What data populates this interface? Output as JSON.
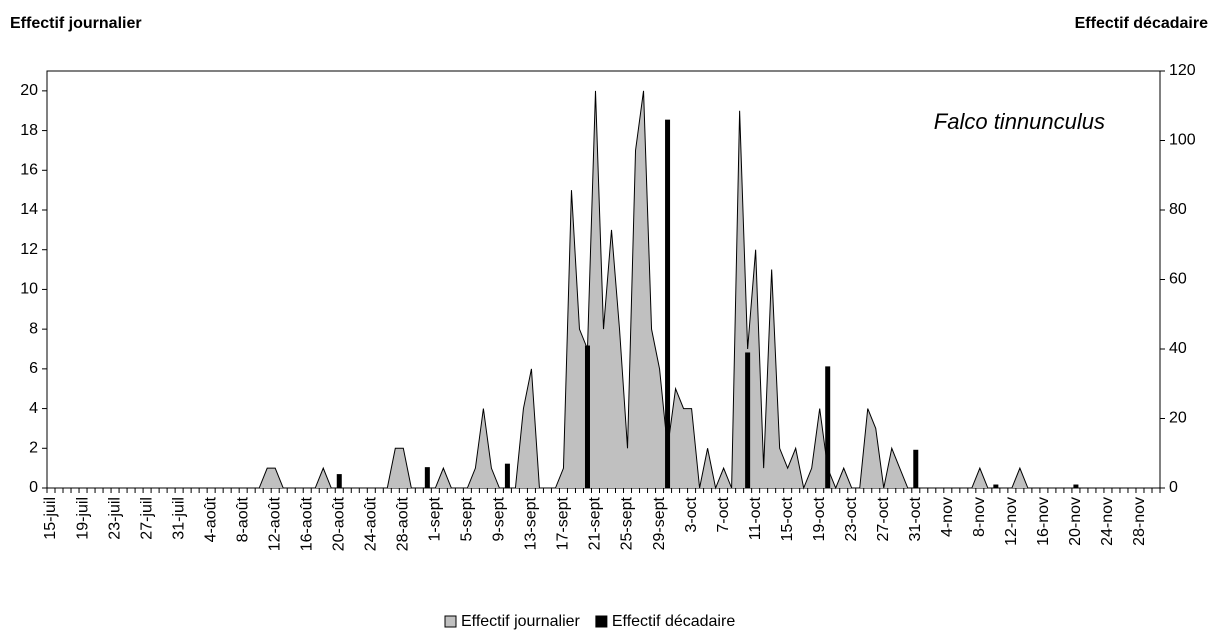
{
  "chart_data": {
    "type": "area",
    "ylabel": "Effectif journalier",
    "y2label": "Effectif décadaire",
    "annotation": "Falco tinnunculus",
    "categories": [
      "15-juil",
      null,
      null,
      null,
      "19-juil",
      null,
      null,
      null,
      "23-juil",
      null,
      null,
      null,
      "27-juil",
      null,
      null,
      null,
      "31-juil",
      null,
      null,
      null,
      "4-août",
      null,
      null,
      null,
      "8-août",
      null,
      null,
      null,
      "12-août",
      null,
      null,
      null,
      "16-août",
      null,
      null,
      null,
      "20-août",
      null,
      null,
      null,
      "24-août",
      null,
      null,
      null,
      "28-août",
      null,
      null,
      null,
      "1-sept",
      null,
      null,
      null,
      "5-sept",
      null,
      null,
      null,
      "9-sept",
      null,
      null,
      null,
      "13-sept",
      null,
      null,
      null,
      "17-sept",
      null,
      null,
      null,
      "21-sept",
      null,
      null,
      null,
      "25-sept",
      null,
      null,
      null,
      "29-sept",
      null,
      null,
      null,
      "3-oct",
      null,
      null,
      null,
      "7-oct",
      null,
      null,
      null,
      "11-oct",
      null,
      null,
      null,
      "15-oct",
      null,
      null,
      null,
      "19-oct",
      null,
      null,
      null,
      "23-oct",
      null,
      null,
      null,
      "27-oct",
      null,
      null,
      null,
      "31-oct",
      null,
      null,
      null,
      "4-nov",
      null,
      null,
      null,
      "8-nov",
      null,
      null,
      null,
      "12-nov",
      null,
      null,
      null,
      "16-nov",
      null,
      null,
      null,
      "20-nov",
      null,
      null,
      null,
      "24-nov",
      null,
      null,
      null,
      "28-nov",
      null,
      null
    ],
    "series": [
      {
        "name": "Effectif journalier",
        "type": "area",
        "color": "#c0c0c0",
        "values": [
          0,
          0,
          0,
          0,
          0,
          0,
          0,
          0,
          0,
          0,
          0,
          0,
          0,
          0,
          0,
          0,
          0,
          0,
          0,
          0,
          0,
          0,
          0,
          0,
          0,
          0,
          0,
          1,
          1,
          0,
          0,
          0,
          0,
          0,
          1,
          0,
          0,
          0,
          0,
          0,
          0,
          0,
          0,
          2,
          2,
          0,
          0,
          0,
          0,
          1,
          0,
          0,
          0,
          1,
          4,
          1,
          0,
          0,
          0,
          4,
          6,
          0,
          0,
          0,
          1,
          15,
          8,
          7,
          20,
          8,
          13,
          8,
          2,
          17,
          20,
          8,
          6,
          2,
          5,
          4,
          4,
          0,
          2,
          0,
          1,
          0,
          19,
          7,
          12,
          1,
          11,
          2,
          1,
          2,
          0,
          1,
          4,
          1,
          0,
          1,
          0,
          0,
          4,
          3,
          0,
          2,
          1,
          0,
          0,
          0,
          0,
          0,
          0,
          0,
          0,
          0,
          1,
          0,
          0,
          0,
          0,
          1,
          0,
          0,
          0,
          0,
          0,
          0,
          0,
          0,
          0,
          0,
          0,
          0,
          0,
          0,
          0,
          0,
          0
        ]
      },
      {
        "name": "Effectif décadaire",
        "type": "bar",
        "axis": "y2",
        "color": "#000000",
        "values": [
          null,
          null,
          null,
          null,
          null,
          null,
          null,
          null,
          null,
          null,
          null,
          null,
          null,
          null,
          null,
          null,
          null,
          null,
          null,
          null,
          null,
          null,
          null,
          null,
          null,
          null,
          null,
          null,
          null,
          null,
          null,
          null,
          null,
          null,
          null,
          null,
          4,
          null,
          null,
          null,
          null,
          null,
          null,
          null,
          null,
          null,
          null,
          6,
          null,
          null,
          null,
          null,
          null,
          null,
          null,
          null,
          null,
          7,
          null,
          null,
          null,
          null,
          null,
          null,
          null,
          null,
          null,
          41,
          null,
          null,
          null,
          null,
          null,
          null,
          null,
          null,
          null,
          106,
          null,
          null,
          null,
          null,
          null,
          null,
          null,
          null,
          null,
          39,
          null,
          null,
          null,
          null,
          null,
          null,
          null,
          null,
          null,
          35,
          null,
          null,
          null,
          null,
          null,
          null,
          null,
          null,
          null,
          null,
          11,
          null,
          null,
          null,
          null,
          null,
          null,
          null,
          null,
          null,
          1,
          null,
          null,
          null,
          null,
          null,
          null,
          null,
          null,
          null,
          1,
          null,
          null,
          null,
          null,
          null,
          null,
          null,
          null,
          null,
          null
        ]
      }
    ],
    "ylim": [
      0,
      21
    ],
    "yticks": [
      0,
      2,
      4,
      6,
      8,
      10,
      12,
      14,
      16,
      18,
      20
    ],
    "y2lim": [
      0,
      120
    ],
    "y2ticks": [
      0,
      20,
      40,
      60,
      80,
      100,
      120
    ],
    "legend": "bottom"
  }
}
